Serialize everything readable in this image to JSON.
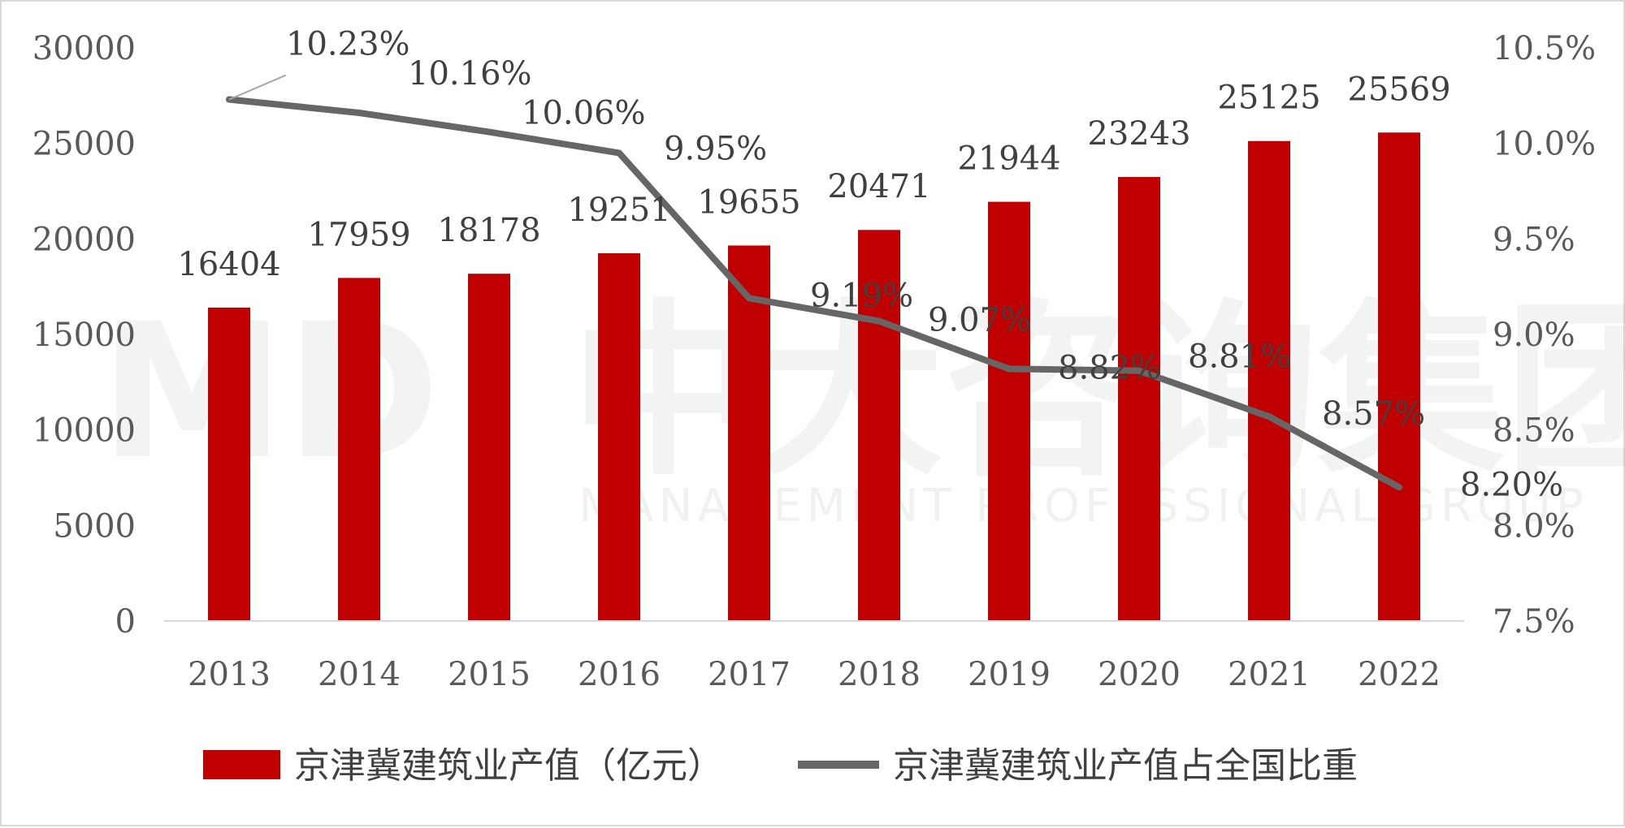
{
  "colors": {
    "bar": "#c00000",
    "line": "#666666",
    "axis": "#d9d9d9"
  },
  "watermark": {
    "logo": "MD",
    "name": "中大咨询集团",
    "english": "MANAGEMENT PROFESSIONAL GROUP"
  },
  "chart_data": {
    "type": "bar+line",
    "title": "",
    "xlabel": "",
    "categories": [
      "2013",
      "2014",
      "2015",
      "2016",
      "2017",
      "2018",
      "2019",
      "2020",
      "2021",
      "2022"
    ],
    "series": [
      {
        "name": "京津冀建筑业产值（亿元）",
        "type": "bar",
        "axis": "left",
        "values": [
          16404,
          17959,
          18178,
          19251,
          19655,
          20471,
          21944,
          23243,
          25125,
          25569
        ],
        "labels": [
          "16404",
          "17959",
          "18178",
          "19251",
          "19655",
          "20471",
          "21944",
          "23243",
          "25125",
          "25569"
        ]
      },
      {
        "name": "京津冀建筑业产值占全国比重",
        "type": "line",
        "axis": "right",
        "values": [
          10.23,
          10.16,
          10.06,
          9.95,
          9.19,
          9.07,
          8.82,
          8.81,
          8.57,
          8.2
        ],
        "labels": [
          "10.23%",
          "10.16%",
          "10.06%",
          "9.95%",
          "9.19%",
          "9.07%",
          "8.82%",
          "8.81%",
          "8.57%",
          "8.20%"
        ]
      }
    ],
    "y_left": {
      "min": 0,
      "max": 30000,
      "ticks": [
        "0",
        "5000",
        "10000",
        "15000",
        "20000",
        "25000",
        "30000"
      ]
    },
    "y_right": {
      "min": 7.5,
      "max": 10.5,
      "ticks": [
        "7.5%",
        "8.0%",
        "8.5%",
        "9.0%",
        "9.5%",
        "10.0%",
        "10.5%"
      ]
    },
    "grid": false,
    "legend": "bottom"
  }
}
